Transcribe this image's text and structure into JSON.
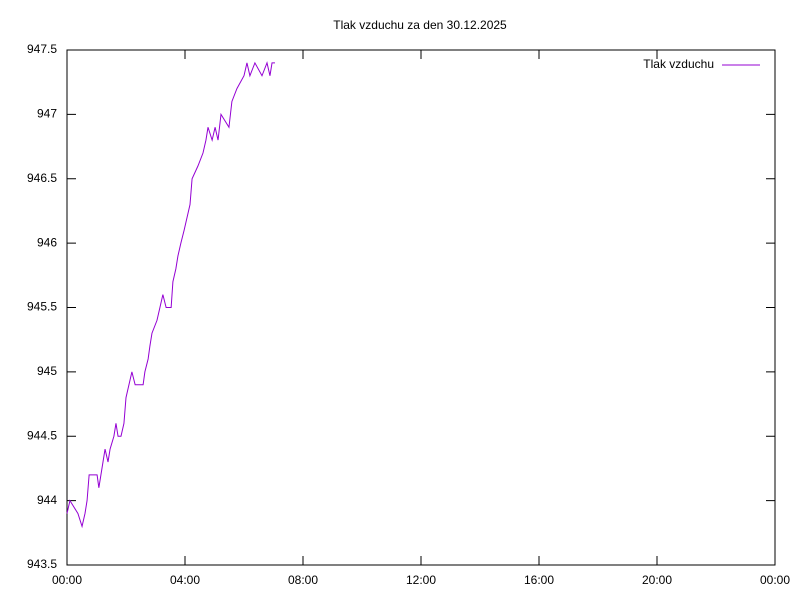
{
  "chart_data": {
    "type": "line",
    "title": "Tlak vzduchu za den 30.12.2025",
    "x": [
      0,
      0.1,
      0.37,
      0.51,
      0.61,
      0.68,
      0.75,
      1.02,
      1.08,
      1.15,
      1.22,
      1.29,
      1.39,
      1.46,
      1.59,
      1.66,
      1.73,
      1.83,
      1.93,
      2.0,
      2.1,
      2.2,
      2.31,
      2.47,
      2.58,
      2.64,
      2.75,
      2.81,
      2.88,
      3.05,
      3.15,
      3.25,
      3.36,
      3.53,
      3.59,
      3.69,
      3.76,
      3.86,
      3.97,
      4.07,
      4.17,
      4.24,
      4.44,
      4.61,
      4.71,
      4.78,
      4.92,
      5.02,
      5.12,
      5.22,
      5.49,
      5.59,
      5.76,
      6.0,
      6.1,
      6.2,
      6.37,
      6.61,
      6.78,
      6.88,
      6.95,
      7.05
    ],
    "series": [
      {
        "name": "Tlak vzduchu",
        "color": "#9400d3",
        "values": [
          943.9,
          944.0,
          943.9,
          943.8,
          943.9,
          944.0,
          944.2,
          944.2,
          944.1,
          944.2,
          944.3,
          944.4,
          944.3,
          944.4,
          944.5,
          944.6,
          944.5,
          944.5,
          944.6,
          944.8,
          944.9,
          945.0,
          944.9,
          944.9,
          944.9,
          945.0,
          945.1,
          945.2,
          945.3,
          945.4,
          945.5,
          945.6,
          945.5,
          945.5,
          945.7,
          945.8,
          945.9,
          946.0,
          946.1,
          946.2,
          946.3,
          946.5,
          946.6,
          946.7,
          946.8,
          946.9,
          946.8,
          946.9,
          946.8,
          947.0,
          946.9,
          947.1,
          947.2,
          947.3,
          947.4,
          947.3,
          947.4,
          947.3,
          947.4,
          947.3,
          947.4,
          947.4
        ]
      }
    ],
    "xlim": [
      0,
      24
    ],
    "xticks": [
      {
        "value": 0,
        "label": "00:00"
      },
      {
        "value": 4,
        "label": "04:00"
      },
      {
        "value": 8,
        "label": "08:00"
      },
      {
        "value": 12,
        "label": "12:00"
      },
      {
        "value": 16,
        "label": "16:00"
      },
      {
        "value": 20,
        "label": "20:00"
      },
      {
        "value": 24,
        "label": "00:00"
      }
    ],
    "ylim": [
      943.5,
      947.5
    ],
    "yticks": [
      943.5,
      944,
      944.5,
      945,
      945.5,
      946,
      946.5,
      947,
      947.5
    ],
    "legend": "top-right"
  }
}
